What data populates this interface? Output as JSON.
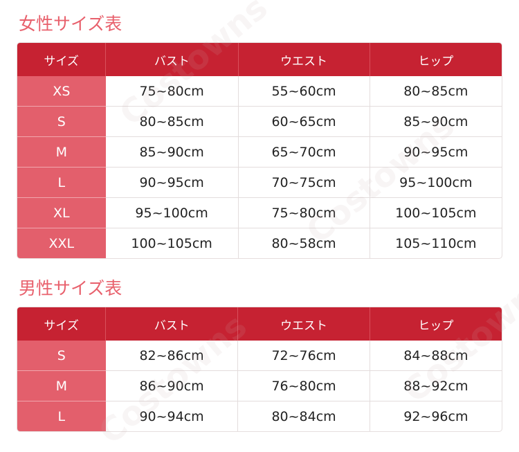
{
  "watermark": "Costowns",
  "women": {
    "title": "女性サイズ表",
    "headers": [
      "サイズ",
      "バスト",
      "ウエスト",
      "ヒップ"
    ],
    "rows": [
      [
        "XS",
        "75~80cm",
        "55~60cm",
        "80~85cm"
      ],
      [
        "S",
        "80~85cm",
        "60~65cm",
        "85~90cm"
      ],
      [
        "M",
        "85~90cm",
        "65~70cm",
        "90~95cm"
      ],
      [
        "L",
        "90~95cm",
        "70~75cm",
        "95~100cm"
      ],
      [
        "XL",
        "95~100cm",
        "75~80cm",
        "100~105cm"
      ],
      [
        "XXL",
        "100~105cm",
        "80~58cm",
        "105~110cm"
      ]
    ]
  },
  "men": {
    "title": "男性サイズ表",
    "headers": [
      "サイズ",
      "バスト",
      "ウエスト",
      "ヒップ"
    ],
    "rows": [
      [
        "S",
        "82~86cm",
        "72~76cm",
        "84~88cm"
      ],
      [
        "M",
        "86~90cm",
        "76~80cm",
        "88~92cm"
      ],
      [
        "L",
        "90~94cm",
        "80~84cm",
        "92~96cm"
      ]
    ]
  },
  "colors": {
    "header": "#c62232",
    "size_column": "#e35f6c",
    "title": "#e8606c"
  }
}
